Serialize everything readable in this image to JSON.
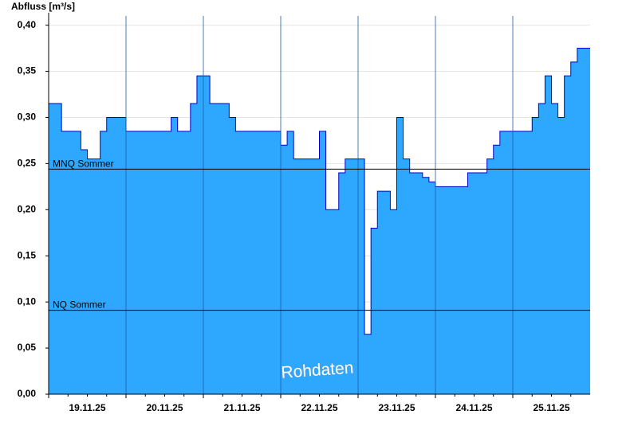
{
  "chart_data": {
    "type": "area",
    "y_label": "Abfluss [m³/s]",
    "watermark": "Rohdaten",
    "categories": [
      null,
      null,
      null,
      null,
      null,
      null,
      "19.11.25",
      null,
      null,
      null,
      null,
      null,
      null,
      null,
      null,
      null,
      null,
      null,
      "20.11.25",
      null,
      null,
      null,
      null,
      null,
      null,
      null,
      null,
      null,
      null,
      null,
      "21.11.25",
      null,
      null,
      null,
      null,
      null,
      null,
      null,
      null,
      null,
      null,
      null,
      "22.11.25",
      null,
      null,
      null,
      null,
      null,
      null,
      null,
      null,
      null,
      null,
      null,
      "23.11.25",
      null,
      null,
      null,
      null,
      null,
      null,
      null,
      null,
      null,
      null,
      null,
      "24.11.25",
      null,
      null,
      null,
      null,
      null,
      null,
      null,
      null,
      null,
      null,
      null,
      "25.11.25",
      null,
      null,
      null,
      null,
      null
    ],
    "series": [
      {
        "color": "#2ea8ff",
        "line_color": "#0000cc",
        "values": [
          0.315,
          0.315,
          0.285,
          0.285,
          0.285,
          0.265,
          0.255,
          0.255,
          0.285,
          0.3,
          0.3,
          0.3,
          0.285,
          0.285,
          0.285,
          0.285,
          0.285,
          0.285,
          0.285,
          0.3,
          0.285,
          0.285,
          0.315,
          0.345,
          0.345,
          0.315,
          0.315,
          0.315,
          0.3,
          0.285,
          0.285,
          0.285,
          0.285,
          0.285,
          0.285,
          0.285,
          0.27,
          0.285,
          0.255,
          0.255,
          0.255,
          0.255,
          0.285,
          0.2,
          0.2,
          0.24,
          0.255,
          0.255,
          0.255,
          0.065,
          0.18,
          0.22,
          0.22,
          0.2,
          0.3,
          0.255,
          0.24,
          0.24,
          0.235,
          0.23,
          0.225,
          0.225,
          0.225,
          0.225,
          0.225,
          0.24,
          0.24,
          0.24,
          0.255,
          0.27,
          0.285,
          0.285,
          0.285,
          0.285,
          0.285,
          0.3,
          0.315,
          0.345,
          0.315,
          0.3,
          0.345,
          0.36,
          0.375,
          0.375
        ]
      }
    ],
    "reference_lines": [
      {
        "label": "MNQ Sommer",
        "value": 0.244
      },
      {
        "label": "NQ Sommer",
        "value": 0.091
      }
    ],
    "ylim": [
      0,
      0.41
    ],
    "yticks": [
      {
        "value": 0,
        "label": "0,00"
      },
      {
        "value": 0.05,
        "label": "0,05"
      },
      {
        "value": 0.1,
        "label": "0,10"
      },
      {
        "value": 0.15,
        "label": "0,15"
      },
      {
        "value": 0.2,
        "label": "0,20"
      },
      {
        "value": 0.25,
        "label": "0,25"
      },
      {
        "value": 0.3,
        "label": "0,30"
      },
      {
        "value": 0.35,
        "label": "0,35"
      },
      {
        "value": 0.4,
        "label": "0,40"
      }
    ],
    "grid": true
  }
}
